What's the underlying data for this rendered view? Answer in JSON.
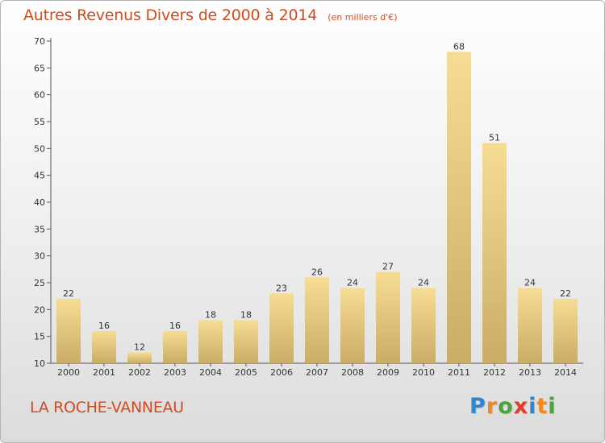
{
  "header": {
    "title": "Autres Revenus Divers de 2000 à 2014",
    "subtitle": "(en milliers d'€)"
  },
  "footer": {
    "commune": "LA ROCHE-VANNEAU",
    "logo_text": "Proxiti"
  },
  "colors": {
    "title": "#d14b1f",
    "bar_light": "#f7dc93",
    "bar_dark": "#c9ad66",
    "logo": [
      "#2b87d1",
      "#f08a1d",
      "#4aa33b",
      "#e23b2e",
      "#2b87d1",
      "#f08a1d",
      "#4aa33b"
    ]
  },
  "chart_data": {
    "type": "bar",
    "categories": [
      "2000",
      "2001",
      "2002",
      "2003",
      "2004",
      "2005",
      "2006",
      "2007",
      "2008",
      "2009",
      "2010",
      "2011",
      "2012",
      "2013",
      "2014"
    ],
    "values": [
      22,
      16,
      12,
      16,
      18,
      18,
      23,
      26,
      24,
      27,
      24,
      68,
      51,
      24,
      22
    ],
    "ylim": [
      10,
      70
    ],
    "yticks": [
      10,
      15,
      20,
      25,
      30,
      35,
      40,
      45,
      50,
      55,
      60,
      65,
      70
    ],
    "xlabel": "",
    "ylabel": "",
    "data_labels": true,
    "grid": false
  }
}
